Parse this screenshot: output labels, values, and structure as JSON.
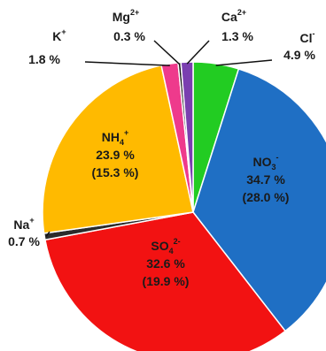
{
  "chart_data": {
    "type": "pie",
    "start_angle_deg": 0,
    "direction": "clockwise",
    "slices": [
      {
        "ion": "Cl",
        "charge": "-",
        "sub": "",
        "value": 4.9,
        "value_label": "4.9 %",
        "paren_label": "",
        "color": "#22cc22",
        "label_mode": "outside"
      },
      {
        "ion": "NO",
        "sub": "3",
        "charge": "-",
        "value": 34.7,
        "value_label": "34.7 %",
        "paren_label": "(28.0 %)",
        "color": "#1f6fc4",
        "label_mode": "inside"
      },
      {
        "ion": "SO",
        "sub": "4",
        "charge": "2-",
        "value": 32.6,
        "value_label": "32.6 %",
        "paren_label": "(19.9 %)",
        "color": "#f21212",
        "label_mode": "inside"
      },
      {
        "ion": "Na",
        "sub": "",
        "charge": "+",
        "value": 0.7,
        "value_label": "0.7 %",
        "paren_label": "",
        "color": "#2b2b2b",
        "label_mode": "outside"
      },
      {
        "ion": "NH",
        "sub": "4",
        "charge": "+",
        "value": 23.9,
        "value_label": "23.9 %",
        "paren_label": "(15.3 %)",
        "color": "#ffba00",
        "label_mode": "inside"
      },
      {
        "ion": "K",
        "sub": "",
        "charge": "+",
        "value": 1.8,
        "value_label": "1.8  %",
        "paren_label": "",
        "color": "#ee3a8c",
        "label_mode": "outside"
      },
      {
        "ion": "Mg",
        "sub": "",
        "charge": "2+",
        "value": 0.3,
        "value_label": "0.3 %",
        "paren_label": "",
        "color": "#111111",
        "label_mode": "outside"
      },
      {
        "ion": "Ca",
        "sub": "",
        "charge": "2+",
        "value": 1.3,
        "value_label": "1.3 %",
        "paren_label": "",
        "color": "#7a3fb0",
        "label_mode": "outside"
      }
    ]
  }
}
